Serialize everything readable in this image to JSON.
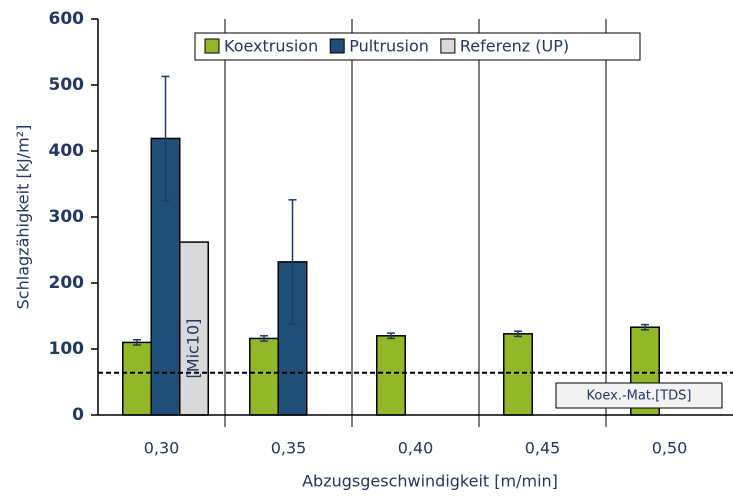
{
  "chart_data": {
    "type": "bar",
    "x_label": "Abzugsgeschwindigkeit   [m/min]",
    "y_label": "Schlagzähigkeit   [kJ/m²]",
    "categories": [
      "0,30",
      "0,35",
      "0,40",
      "0,45",
      "0,50"
    ],
    "series": [
      {
        "name": "Koextrusion",
        "color": "#92b82a",
        "values": [
          110,
          116,
          120,
          123,
          133
        ],
        "errors": [
          4,
          4,
          4,
          4,
          4
        ]
      },
      {
        "name": "Pultrusion",
        "color": "#1f4e79",
        "values": [
          419,
          232,
          null,
          null,
          null
        ],
        "errors": [
          94,
          94,
          null,
          null,
          null
        ]
      },
      {
        "name": "Referenz (UP)",
        "color": "#d9d9d9",
        "values": [
          262,
          null,
          null,
          null,
          null
        ],
        "annotations": [
          "[Mic10]",
          null,
          null,
          null,
          null
        ]
      }
    ],
    "reference_line": {
      "value": 64,
      "label": "Koex.-Mat.[TDS]"
    },
    "ylim": [
      0,
      600
    ],
    "yticks": [
      0,
      100,
      200,
      300,
      400,
      500,
      600
    ],
    "grid": true,
    "legend": "top"
  }
}
